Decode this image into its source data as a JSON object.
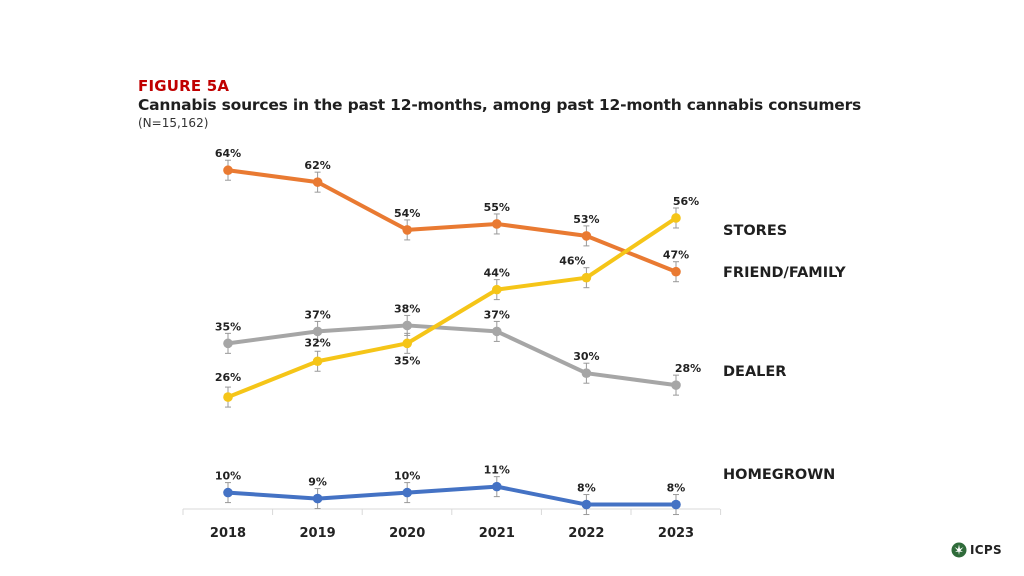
{
  "header": {
    "figure_label": "FIGURE 5A",
    "title": "Cannabis sources in the past 12-months, among past 12-month cannabis consumers",
    "subtitle": "(N=15,162)"
  },
  "logo": {
    "text": "ICPS",
    "icon": "cannabis-leaf-icon"
  },
  "chart_data": {
    "type": "line",
    "title": "Cannabis sources in the past 12-months, among past 12-month cannabis consumers",
    "xlabel": "",
    "ylabel": "",
    "categories": [
      "2018",
      "2019",
      "2020",
      "2021",
      "2022",
      "2023"
    ],
    "ylim": [
      0,
      70
    ],
    "grid": false,
    "error_bars": true,
    "series": [
      {
        "name": "STORES",
        "color": "#f5c518",
        "values": [
          26,
          32,
          35,
          44,
          46,
          56
        ],
        "labels": [
          "26%",
          "32%",
          "35%",
          "44%",
          "46%",
          "56%"
        ]
      },
      {
        "name": "FRIEND/FAMILY",
        "color": "#e97a32",
        "values": [
          64,
          62,
          54,
          55,
          53,
          47
        ],
        "labels": [
          "64%",
          "62%",
          "54%",
          "55%",
          "53%",
          "47%"
        ]
      },
      {
        "name": "DEALER",
        "color": "#a6a6a6",
        "values": [
          35,
          37,
          38,
          37,
          30,
          28
        ],
        "labels": [
          "35%",
          "37%",
          "38%",
          "37%",
          "30%",
          "28%"
        ]
      },
      {
        "name": "HOMEGROWN",
        "color": "#4472c4",
        "values": [
          10,
          9,
          10,
          11,
          8,
          8
        ],
        "labels": [
          "10%",
          "9%",
          "10%",
          "11%",
          "8%",
          "8%"
        ]
      }
    ]
  }
}
